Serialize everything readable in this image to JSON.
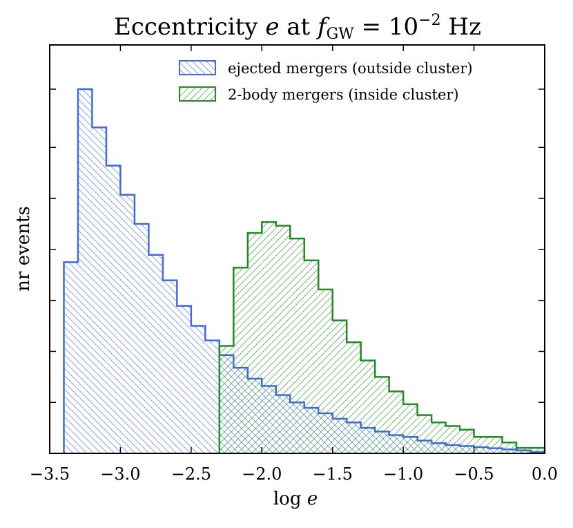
{
  "chart_data": {
    "type": "histogram",
    "title_prefix": "Eccentricity ",
    "title_var": "e",
    "title_mid": " at ",
    "title_f": "f",
    "title_sub": "GW",
    "title_eq": " = 10",
    "title_exp": "−2",
    "title_unit": " Hz",
    "xlabel_text": "log ",
    "xlabel_var": "e",
    "ylabel": "nr events",
    "xlim": [
      -3.5,
      0.0
    ],
    "ylim": [
      0,
      100
    ],
    "xticks": [
      -3.5,
      -3.0,
      -2.5,
      -2.0,
      -1.5,
      -1.0,
      -0.5,
      0.0
    ],
    "xtick_labels": [
      "−3.5",
      "−3.0",
      "−2.5",
      "−2.0",
      "−1.5",
      "−1.0",
      "−0.5",
      "0.0"
    ],
    "yticks": [
      14,
      28,
      42,
      56,
      70,
      84,
      100
    ],
    "bin_width": 0.1,
    "series": [
      {
        "name": "ejected mergers (outside cluster)",
        "color": "#4169e1",
        "hatch": "backslash",
        "bin_start": -3.4,
        "values": [
          52.5,
          100.0,
          89.5,
          79.0,
          71.0,
          63.0,
          54.5,
          47.5,
          40.5,
          35.0,
          31.0,
          27.0,
          23.5,
          20.5,
          18.5,
          16.0,
          14.0,
          12.5,
          11.0,
          9.5,
          8.5,
          7.0,
          6.0,
          5.0,
          4.5,
          3.5,
          2.8,
          2.3,
          2.0,
          1.7,
          1.4,
          1.1,
          0.8,
          0.4
        ]
      },
      {
        "name": "2-body mergers (inside cluster)",
        "color": "#228b22",
        "hatch": "slash",
        "bin_start": -2.3,
        "values": [
          29.5,
          51.0,
          60.5,
          63.5,
          62.5,
          59.0,
          53.0,
          45.0,
          36.5,
          30.5,
          25.5,
          21.0,
          17.0,
          13.5,
          10.5,
          8.5,
          7.5,
          6.5,
          4.5,
          4.5,
          3.0,
          1.5,
          1.5
        ]
      }
    ]
  }
}
